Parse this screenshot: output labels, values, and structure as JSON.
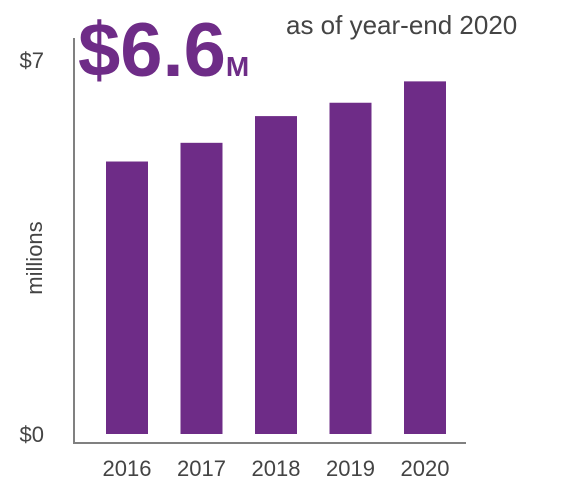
{
  "chart_data": {
    "type": "bar",
    "title": "$6.6",
    "title_suffix": "M",
    "subtitle": "as of year-end 2020",
    "ylabel": "millions",
    "categories": [
      "2016",
      "2017",
      "2018",
      "2019",
      "2020"
    ],
    "values": [
      5.1,
      5.45,
      5.95,
      6.2,
      6.6
    ],
    "ylim": [
      0,
      7
    ],
    "y_ticks": [
      {
        "value": 0,
        "label": "$0"
      },
      {
        "value": 7,
        "label": "$7"
      }
    ],
    "grid": false,
    "legend": "none",
    "colors": {
      "bar": "#6e2c87",
      "title": "#6e2c87",
      "axis": "#808080",
      "text": "#444444"
    }
  }
}
